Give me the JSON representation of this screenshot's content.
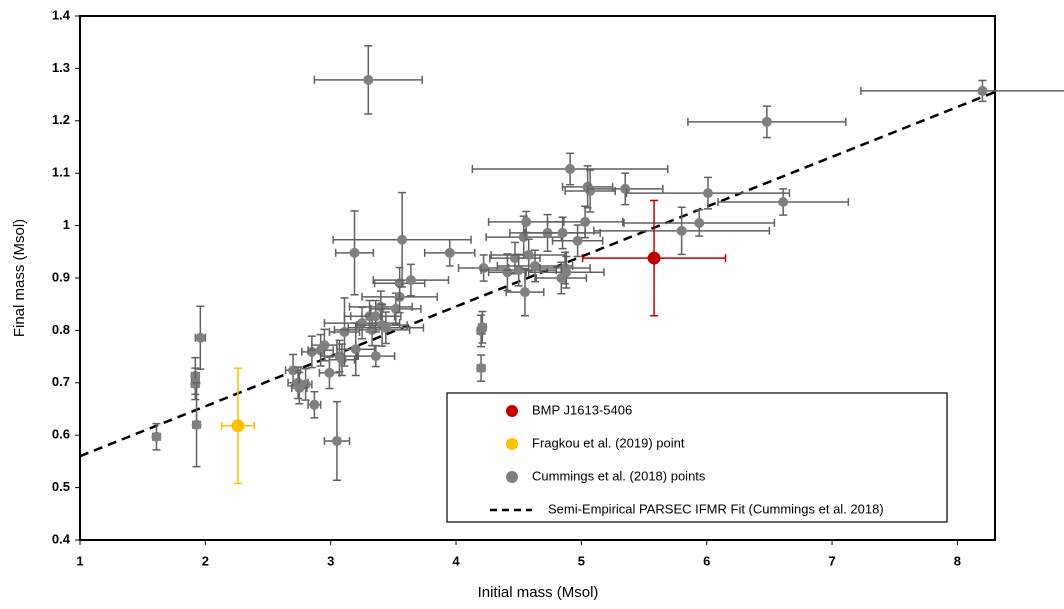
{
  "chart_data": {
    "type": "scatter",
    "x_label": "Initial mass (Msol)",
    "y_label": "Final mass (Msol)",
    "xlim": [
      1,
      8.3
    ],
    "ylim": [
      0.4,
      1.4
    ],
    "xticks": [
      1,
      2,
      3,
      4,
      5,
      6,
      7,
      8
    ],
    "yticks": [
      0.4,
      0.5,
      0.6,
      0.7,
      0.8,
      0.9,
      1,
      1.1,
      1.2,
      1.3,
      1.4
    ],
    "legend": "lower right",
    "series": [
      {
        "name": "BMP J1613-5406",
        "type": "scatter",
        "color": "#c00000",
        "x": [
          5.58
        ],
        "values": [
          0.938
        ],
        "x_err": [
          0.57
        ],
        "y_err": [
          0.11
        ]
      },
      {
        "name": "Fragkou et al. (2019) point",
        "type": "scatter",
        "color": "#ffc000",
        "x": [
          2.26
        ],
        "values": [
          0.618
        ],
        "x_err": [
          0.13
        ],
        "y_err": [
          0.11
        ]
      },
      {
        "name": "Cummings et al. (2018) points",
        "type": "scatter",
        "color": "#808080",
        "x": [
          1.61,
          1.92,
          1.92,
          1.93,
          1.96,
          2.7,
          2.74,
          2.8,
          2.75,
          2.85,
          2.87,
          2.92,
          2.95,
          2.99,
          3.05,
          3.07,
          3.09,
          3.11,
          3.19,
          3.2,
          3.25,
          3.3,
          3.31,
          3.33,
          3.36,
          3.36,
          3.4,
          3.41,
          3.44,
          3.52,
          3.55,
          3.55,
          3.57,
          3.64,
          3.95,
          4.2,
          4.21,
          4.2,
          4.22,
          4.41,
          4.47,
          4.5,
          4.54,
          4.56,
          4.55,
          4.58,
          4.63,
          4.73,
          4.85,
          4.87,
          4.88,
          4.84,
          4.91,
          4.97,
          5.03,
          5.05,
          5.07,
          5.35,
          5.8,
          5.94,
          6.01,
          6.48,
          6.61,
          8.2
        ],
        "values": [
          0.597,
          0.713,
          0.698,
          0.62,
          0.786,
          0.724,
          0.7,
          0.697,
          0.69,
          0.759,
          0.658,
          0.762,
          0.772,
          0.719,
          0.589,
          0.751,
          0.744,
          0.797,
          0.948,
          0.764,
          0.814,
          1.278,
          0.827,
          0.801,
          0.751,
          0.827,
          0.845,
          0.81,
          0.805,
          0.841,
          0.864,
          0.89,
          0.973,
          0.896,
          0.948,
          0.799,
          0.806,
          0.728,
          0.919,
          0.911,
          0.938,
          0.915,
          0.978,
          1.007,
          0.873,
          0.944,
          0.923,
          0.986,
          0.986,
          0.919,
          0.911,
          0.9,
          1.108,
          0.971,
          1.007,
          1.074,
          1.066,
          1.07,
          0.99,
          1.005,
          1.062,
          1.198,
          1.045,
          1.257
        ],
        "x_err": [
          0.03,
          0.03,
          0.03,
          0.03,
          0.04,
          0.06,
          0.08,
          0.05,
          0.06,
          0.08,
          0.05,
          0.1,
          0.1,
          0.08,
          0.1,
          0.15,
          0.1,
          0.12,
          0.15,
          0.15,
          0.3,
          0.43,
          0.2,
          0.3,
          0.15,
          0.2,
          0.25,
          0.2,
          0.3,
          0.2,
          0.3,
          0.2,
          0.55,
          0.3,
          0.2,
          0.03,
          0.03,
          0.03,
          0.2,
          0.15,
          0.2,
          0.3,
          0.3,
          0.3,
          0.15,
          0.3,
          0.3,
          0.3,
          0.3,
          0.2,
          0.3,
          0.2,
          0.78,
          0.2,
          0.3,
          0.2,
          0.2,
          0.3,
          0.7,
          0.6,
          0.65,
          0.63,
          0.52,
          0.97
        ],
        "y_err": [
          0.025,
          0.035,
          0.03,
          0.08,
          0.06,
          0.03,
          0.03,
          0.03,
          0.03,
          0.03,
          0.025,
          0.03,
          0.03,
          0.03,
          0.075,
          0.03,
          0.03,
          0.065,
          0.08,
          0.05,
          0.03,
          0.065,
          0.03,
          0.03,
          0.02,
          0.03,
          0.03,
          0.04,
          0.03,
          0.03,
          0.03,
          0.03,
          0.09,
          0.03,
          0.025,
          0.03,
          0.03,
          0.025,
          0.025,
          0.035,
          0.03,
          0.03,
          0.04,
          0.02,
          0.045,
          0.03,
          0.03,
          0.035,
          0.03,
          0.03,
          0.03,
          0.03,
          0.03,
          0.03,
          0.03,
          0.04,
          0.04,
          0.03,
          0.045,
          0.025,
          0.03,
          0.03,
          0.025,
          0.02
        ]
      },
      {
        "name": "Semi-Empirical PARSEC IFMR Fit (Cummings et al. 2018)",
        "type": "line",
        "color": "#000000",
        "x": [
          1,
          8.3
        ],
        "values": [
          0.56,
          1.255
        ]
      }
    ]
  }
}
